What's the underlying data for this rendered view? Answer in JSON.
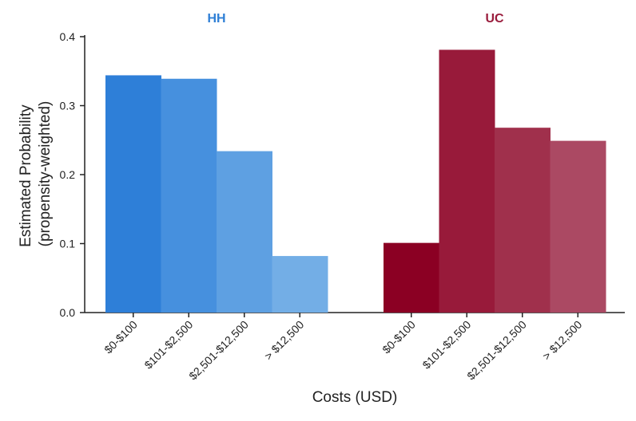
{
  "chart_data": {
    "type": "bar",
    "ylabel_line1": "Estimated Probability",
    "ylabel_line2": "(propensity-weighted)",
    "xlabel": "Costs (USD)",
    "ylim": [
      0,
      0.4
    ],
    "yticks": [
      "0.0",
      "0.1",
      "0.2",
      "0.3",
      "0.4"
    ],
    "categories": [
      "$0-$100",
      "$101-$2,500",
      "$2,501-$12,500",
      "> $12,500"
    ],
    "groups": [
      {
        "name": "HH",
        "title_color": "#2f7fd6",
        "colors": [
          "#2e7fd8",
          "#4690de",
          "#5ea0e2",
          "#73aee6"
        ],
        "values": [
          0.344,
          0.339,
          0.234,
          0.082
        ]
      },
      {
        "name": "UC",
        "title_color": "#9a1d3d",
        "colors": [
          "#8b0023",
          "#981a3a",
          "#a0304c",
          "#ab4963"
        ],
        "values": [
          0.101,
          0.381,
          0.268,
          0.249
        ]
      }
    ],
    "grid": false,
    "legend": "none"
  }
}
